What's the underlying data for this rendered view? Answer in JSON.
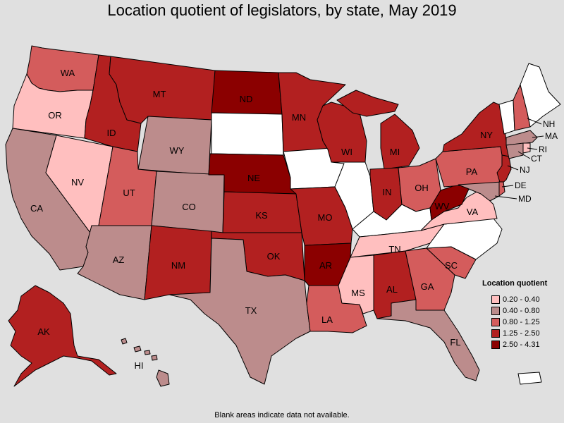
{
  "title": "Location quotient of legislators, by state, May 2019",
  "footnote": "Blank areas indicate data not available.",
  "legend": {
    "title": "Location quotient",
    "items": [
      {
        "label": "0.20 - 0.40",
        "color": "#ffbfbf"
      },
      {
        "label": "0.40 - 0.80",
        "color": "#bc8c8c"
      },
      {
        "label": "0.80 - 1.25",
        "color": "#d45c5c"
      },
      {
        "label": "1.25 - 2.50",
        "color": "#b22020"
      },
      {
        "label": "2.50 - 4.31",
        "color": "#8b0000"
      }
    ]
  },
  "no_data_color": "#ffffff",
  "states": {
    "WA": {
      "label": "WA",
      "bin": 2
    },
    "OR": {
      "label": "OR",
      "bin": 0
    },
    "CA": {
      "label": "CA",
      "bin": 1
    },
    "NV": {
      "label": "NV",
      "bin": 0
    },
    "ID": {
      "label": "ID",
      "bin": 3
    },
    "MT": {
      "label": "MT",
      "bin": 3
    },
    "WY": {
      "label": "WY",
      "bin": 1
    },
    "UT": {
      "label": "UT",
      "bin": 2
    },
    "AZ": {
      "label": "AZ",
      "bin": 1
    },
    "CO": {
      "label": "CO",
      "bin": 1
    },
    "NM": {
      "label": "NM",
      "bin": 3
    },
    "ND": {
      "label": "ND",
      "bin": 4
    },
    "SD": {
      "label": "",
      "bin": null
    },
    "NE": {
      "label": "NE",
      "bin": 4
    },
    "KS": {
      "label": "KS",
      "bin": 3
    },
    "OK": {
      "label": "OK",
      "bin": 3
    },
    "TX": {
      "label": "TX",
      "bin": 1
    },
    "MN": {
      "label": "MN",
      "bin": 3
    },
    "IA": {
      "label": "",
      "bin": null
    },
    "MO": {
      "label": "MO",
      "bin": 3
    },
    "AR": {
      "label": "AR",
      "bin": 4
    },
    "LA": {
      "label": "LA",
      "bin": 2
    },
    "WI": {
      "label": "WI",
      "bin": 3
    },
    "IL": {
      "label": "",
      "bin": null
    },
    "MI": {
      "label": "MI",
      "bin": 3
    },
    "IN": {
      "label": "IN",
      "bin": 3
    },
    "OH": {
      "label": "OH",
      "bin": 2
    },
    "KY": {
      "label": "",
      "bin": null
    },
    "TN": {
      "label": "TN",
      "bin": 0
    },
    "MS": {
      "label": "MS",
      "bin": 0
    },
    "AL": {
      "label": "AL",
      "bin": 3
    },
    "GA": {
      "label": "GA",
      "bin": 2
    },
    "FL": {
      "label": "FL",
      "bin": 1
    },
    "SC": {
      "label": "SC",
      "bin": 2
    },
    "NC": {
      "label": "",
      "bin": null
    },
    "VA": {
      "label": "VA",
      "bin": 0
    },
    "WV": {
      "label": "WV",
      "bin": 4
    },
    "PA": {
      "label": "PA",
      "bin": 2
    },
    "NY": {
      "label": "NY",
      "bin": 3
    },
    "VT": {
      "label": "",
      "bin": null
    },
    "NH": {
      "label": "NH",
      "bin": 2
    },
    "ME": {
      "label": "",
      "bin": null
    },
    "MA": {
      "label": "MA",
      "bin": 1
    },
    "RI": {
      "label": "RI",
      "bin": 0
    },
    "CT": {
      "label": "CT",
      "bin": 1
    },
    "NJ": {
      "label": "NJ",
      "bin": 3
    },
    "DE": {
      "label": "DE",
      "bin": 2
    },
    "MD": {
      "label": "MD",
      "bin": 1
    },
    "AK": {
      "label": "AK",
      "bin": 3
    },
    "HI": {
      "label": "HI",
      "bin": 1
    },
    "PR": {
      "label": "",
      "bin": null
    }
  }
}
